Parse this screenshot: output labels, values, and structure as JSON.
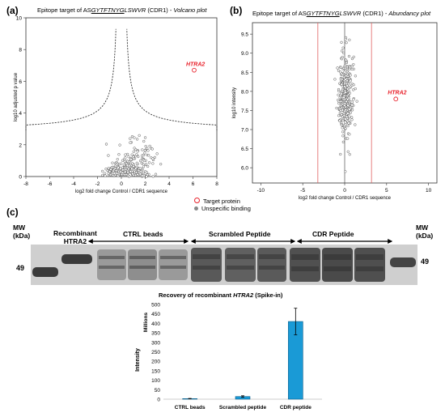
{
  "panels": {
    "a": {
      "label": "(a)",
      "title_prefix": "Epitope target of AS",
      "title_seq": "GYTFTNYG",
      "title_suffix": "LSWVR (CDR1) - ",
      "title_italic": "Volcano plot"
    },
    "b": {
      "label": "(b)",
      "title_prefix": "Epitope target of AS",
      "title_seq": "GYTFTNYG",
      "title_suffix": "LSWVR (CDR1) - ",
      "title_italic": "Abundancy plot"
    },
    "c": {
      "label": "(c)"
    }
  },
  "legend": {
    "target": "Target protein",
    "unspecific": "Unspecific binding"
  },
  "blot": {
    "mw_label": "MW\n(kDa)",
    "mw_left": "MW",
    "mw_left_unit": "(kDa)",
    "mw_right": "MW",
    "mw_right_unit": "(kDa)",
    "marker_left": "49",
    "marker_right": "49",
    "recombinant": "Recombinant",
    "recombinant2": "HTRA2",
    "ctrl": "CTRL beads",
    "scrambled": "Scrambled Peptide",
    "cdr": "CDR Peptide"
  },
  "colors": {
    "target": "#e8202a",
    "points": "#777777",
    "bar": "#1a9ad6"
  },
  "chart_data": [
    {
      "type": "scatter",
      "name": "volcano",
      "xlabel": "log2 fold change Control / CDR1 sequence",
      "ylabel": "log10 adjusted p value",
      "xlim": [
        -8,
        8
      ],
      "ylim": [
        0,
        10
      ],
      "xticks": [
        -8,
        -6,
        -4,
        -2,
        0,
        2,
        4,
        6,
        8
      ],
      "yticks": [
        0,
        2,
        4,
        6,
        8,
        10
      ],
      "annotation": "HTRA2",
      "target_point": {
        "x": 6.1,
        "y": 6.7
      },
      "threshold_curve": "dashed"
    },
    {
      "type": "scatter",
      "name": "abundancy",
      "xlabel": "log2 fold change Control / CDR1 sequence",
      "ylabel": "log10 intensity",
      "xlim": [
        -11,
        11
      ],
      "ylim": [
        5.6,
        9.8
      ],
      "xticks": [
        -10,
        -5,
        0,
        5,
        10
      ],
      "yticks": [
        6.0,
        6.5,
        7.0,
        7.5,
        8.0,
        8.5,
        9.0,
        9.5
      ],
      "annotation": "HTRA2",
      "target_point": {
        "x": 6.1,
        "y": 7.8
      },
      "vlines": [
        -3.2,
        3.2
      ]
    },
    {
      "type": "bar",
      "title": "Recovery of recombinant HTRA2 (Spike-in)",
      "title_prefix": "Recovery of recombinant ",
      "title_italic": "HTRA2",
      "title_suffix": " (Spike-in)",
      "categories": [
        "CTRL beads",
        "Scrambled peptide",
        "CDR peptide"
      ],
      "values": [
        3,
        14,
        410
      ],
      "errors": [
        1,
        4,
        70
      ],
      "ylabel": "Intensity",
      "yunit": "Millions",
      "ylim": [
        0,
        500
      ],
      "yticks": [
        0,
        50,
        100,
        150,
        200,
        250,
        300,
        350,
        400,
        450,
        500
      ]
    }
  ]
}
